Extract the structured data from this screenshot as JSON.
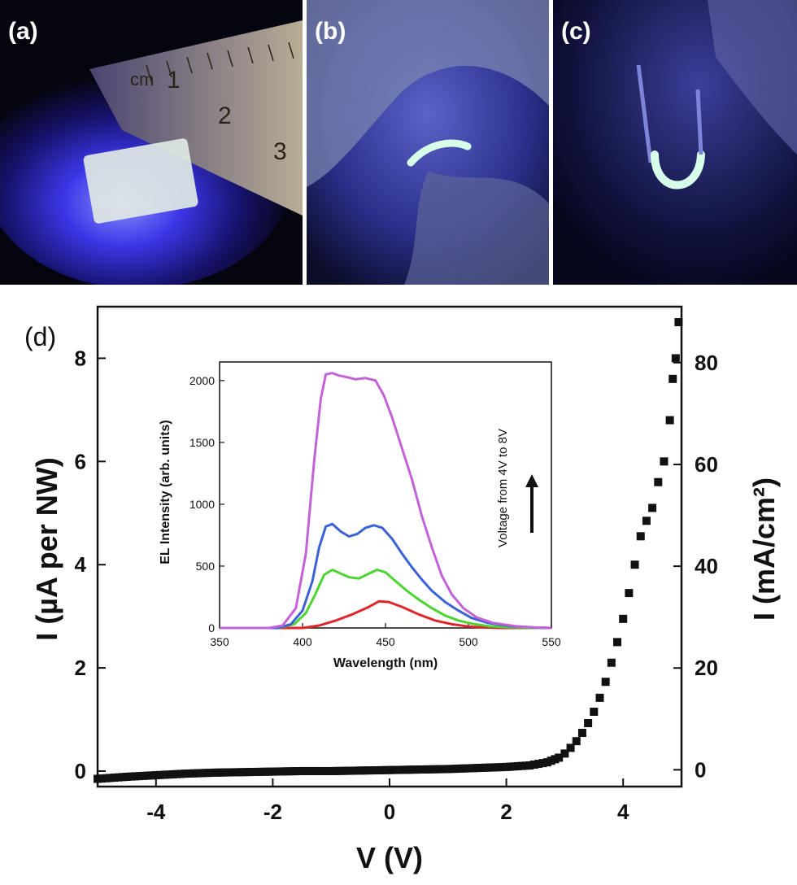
{
  "photos": [
    {
      "label": "(a)",
      "rulerLabel": "cm",
      "rulerNumbers": [
        "1",
        "2",
        "3"
      ]
    },
    {
      "label": "(b)"
    },
    {
      "label": "(c)"
    }
  ],
  "chart_data": [
    {
      "panel": "(d)",
      "type": "scatter",
      "xlabel": "V (V)",
      "ylabel_left": "I (µA per NW)",
      "ylabel_right": "I (mA/cm²)",
      "xlim": [
        -5,
        5
      ],
      "ylim_left": [
        -0.3,
        9
      ],
      "ylim_right": [
        -3.3,
        91
      ],
      "xticks": [
        "-4",
        "-2",
        "0",
        "2",
        "4"
      ],
      "yticks_left": [
        "0",
        "2",
        "4",
        "6",
        "8"
      ],
      "yticks_right": [
        "0",
        "20",
        "40",
        "60",
        "80"
      ],
      "marker": "square",
      "color": "#111111",
      "points": [
        [
          -5.0,
          -0.15
        ],
        [
          -4.5,
          -0.11
        ],
        [
          -4.0,
          -0.08
        ],
        [
          -3.5,
          -0.05
        ],
        [
          -3.0,
          -0.03
        ],
        [
          -2.5,
          -0.02
        ],
        [
          -2.0,
          -0.01
        ],
        [
          -1.5,
          0.0
        ],
        [
          -1.0,
          0.0
        ],
        [
          -0.5,
          0.01
        ],
        [
          0.0,
          0.02
        ],
        [
          0.5,
          0.03
        ],
        [
          1.0,
          0.04
        ],
        [
          1.5,
          0.06
        ],
        [
          2.0,
          0.08
        ],
        [
          2.4,
          0.11
        ],
        [
          2.7,
          0.17
        ],
        [
          2.9,
          0.26
        ],
        [
          3.0,
          0.34
        ],
        [
          3.1,
          0.45
        ],
        [
          3.2,
          0.58
        ],
        [
          3.3,
          0.74
        ],
        [
          3.4,
          0.93
        ],
        [
          3.5,
          1.15
        ],
        [
          3.6,
          1.42
        ],
        [
          3.7,
          1.73
        ],
        [
          3.8,
          2.1
        ],
        [
          3.9,
          2.5
        ],
        [
          4.0,
          2.95
        ],
        [
          4.1,
          3.45
        ],
        [
          4.2,
          4.0
        ],
        [
          4.3,
          4.55
        ],
        [
          4.4,
          4.85
        ],
        [
          4.5,
          5.1
        ],
        [
          4.6,
          5.6
        ],
        [
          4.7,
          6.0
        ],
        [
          4.8,
          6.8
        ],
        [
          4.85,
          7.6
        ],
        [
          4.9,
          8.0
        ],
        [
          4.95,
          8.7
        ]
      ]
    },
    {
      "panel": "inset",
      "type": "line",
      "xlabel": "Wavelength (nm)",
      "ylabel": "EL Intensity (arb. units)",
      "xlim": [
        350,
        550
      ],
      "ylim": [
        0,
        2150
      ],
      "xticks": [
        "350",
        "400",
        "450",
        "500",
        "550"
      ],
      "yticks": [
        "0",
        "500",
        "1000",
        "1500",
        "2000"
      ],
      "annotation": "Voltage from 4V to 8V",
      "series": [
        {
          "color": "#e0262b",
          "points": [
            [
              350,
              0
            ],
            [
              400,
              0
            ],
            [
              410,
              20
            ],
            [
              420,
              60
            ],
            [
              430,
              110
            ],
            [
              440,
              170
            ],
            [
              446,
              215
            ],
            [
              452,
              210
            ],
            [
              460,
              170
            ],
            [
              470,
              110
            ],
            [
              480,
              60
            ],
            [
              490,
              30
            ],
            [
              500,
              12
            ],
            [
              510,
              4
            ],
            [
              520,
              0
            ],
            [
              550,
              0
            ]
          ]
        },
        {
          "color": "#4cd430",
          "points": [
            [
              350,
              0
            ],
            [
              385,
              0
            ],
            [
              395,
              30
            ],
            [
              402,
              120
            ],
            [
              408,
              280
            ],
            [
              413,
              430
            ],
            [
              418,
              470
            ],
            [
              423,
              440
            ],
            [
              428,
              410
            ],
            [
              434,
              400
            ],
            [
              440,
              440
            ],
            [
              445,
              470
            ],
            [
              450,
              450
            ],
            [
              456,
              380
            ],
            [
              463,
              300
            ],
            [
              470,
              230
            ],
            [
              478,
              160
            ],
            [
              486,
              100
            ],
            [
              494,
              60
            ],
            [
              502,
              35
            ],
            [
              512,
              15
            ],
            [
              525,
              5
            ],
            [
              540,
              0
            ],
            [
              550,
              0
            ]
          ]
        },
        {
          "color": "#3a62d6",
          "points": [
            [
              350,
              0
            ],
            [
              385,
              0
            ],
            [
              393,
              30
            ],
            [
              400,
              140
            ],
            [
              406,
              380
            ],
            [
              410,
              650
            ],
            [
              414,
              820
            ],
            [
              418,
              840
            ],
            [
              423,
              780
            ],
            [
              428,
              740
            ],
            [
              433,
              760
            ],
            [
              438,
              810
            ],
            [
              443,
              830
            ],
            [
              448,
              810
            ],
            [
              454,
              720
            ],
            [
              460,
              600
            ],
            [
              466,
              490
            ],
            [
              472,
              390
            ],
            [
              478,
              300
            ],
            [
              486,
              210
            ],
            [
              494,
              140
            ],
            [
              502,
              80
            ],
            [
              512,
              40
            ],
            [
              525,
              15
            ],
            [
              540,
              3
            ],
            [
              550,
              0
            ]
          ]
        },
        {
          "color": "#c461d9",
          "points": [
            [
              350,
              0
            ],
            [
              380,
              0
            ],
            [
              388,
              20
            ],
            [
              396,
              160
            ],
            [
              402,
              600
            ],
            [
              407,
              1350
            ],
            [
              411,
              1850
            ],
            [
              414,
              2050
            ],
            [
              418,
              2060
            ],
            [
              422,
              2040
            ],
            [
              426,
              2030
            ],
            [
              432,
              2010
            ],
            [
              438,
              2020
            ],
            [
              444,
              2000
            ],
            [
              449,
              1880
            ],
            [
              454,
              1700
            ],
            [
              460,
              1450
            ],
            [
              466,
              1200
            ],
            [
              472,
              900
            ],
            [
              478,
              650
            ],
            [
              484,
              420
            ],
            [
              490,
              270
            ],
            [
              497,
              160
            ],
            [
              505,
              85
            ],
            [
              515,
              40
            ],
            [
              528,
              15
            ],
            [
              540,
              4
            ],
            [
              550,
              0
            ]
          ]
        }
      ]
    }
  ]
}
